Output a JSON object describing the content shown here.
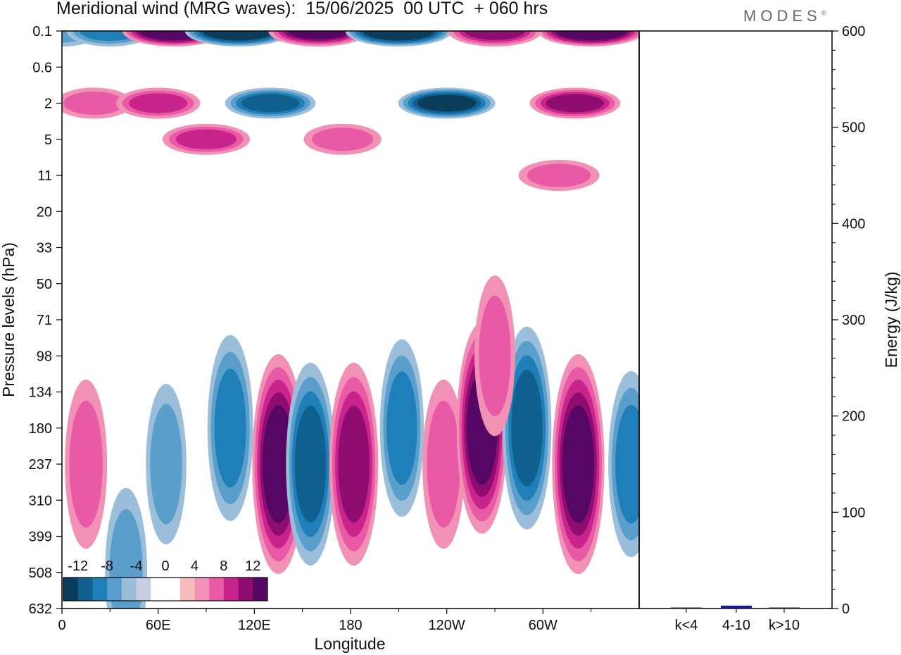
{
  "title": "Meridional wind (MRG waves):  15/06/2025  00 UTC  + 060 hrs",
  "logo": "MODES",
  "logo_mark": "®",
  "colors": {
    "neg": [
      "#0b3d5b",
      "#10608f",
      "#1f7fb8",
      "#5a9fcc",
      "#9bbedb",
      "#c9cce3"
    ],
    "pos": [
      "#f6bcbc",
      "#f291b6",
      "#e85aa5",
      "#c9238c",
      "#8f0d70",
      "#560764"
    ],
    "bar": "#1a1a8c"
  },
  "chart_data": [
    {
      "type": "heatmap",
      "title": "Meridional wind (MRG waves):  15/06/2025  00 UTC  + 060 hrs",
      "xlabel": "Longitude",
      "ylabel": "Pressure levels (hPa)",
      "x_ticks": [
        "0",
        "60E",
        "120E",
        "180",
        "120W",
        "60W"
      ],
      "y_ticks": [
        "0.1",
        "0.6",
        "2",
        "5",
        "11",
        "20",
        "33",
        "50",
        "71",
        "98",
        "134",
        "180",
        "237",
        "310",
        "399",
        "508",
        "632"
      ],
      "colorbar_labels": [
        "-12",
        "-8",
        "-4",
        "0",
        "4",
        "8",
        "12"
      ],
      "contour_levels": [
        -12,
        -10,
        -8,
        -6,
        -4,
        -2,
        2,
        4,
        6,
        8,
        10,
        12
      ],
      "features": [
        {
          "lon": 0,
          "level": 0.1,
          "value": -5
        },
        {
          "lon": 30,
          "level": 0.1,
          "value": -7
        },
        {
          "lon": 70,
          "level": 0.1,
          "value": 12
        },
        {
          "lon": 110,
          "level": 0.1,
          "value": -13
        },
        {
          "lon": 160,
          "level": 0.1,
          "value": 11
        },
        {
          "lon": 210,
          "level": 0.1,
          "value": -13
        },
        {
          "lon": 270,
          "level": 0.1,
          "value": 9
        },
        {
          "lon": 330,
          "level": 0.1,
          "value": 13
        },
        {
          "lon": 20,
          "level": 2,
          "value": 4
        },
        {
          "lon": 60,
          "level": 2,
          "value": 6
        },
        {
          "lon": 130,
          "level": 2,
          "value": -8
        },
        {
          "lon": 240,
          "level": 2,
          "value": -10
        },
        {
          "lon": 320,
          "level": 2,
          "value": 8
        },
        {
          "lon": 90,
          "level": 5,
          "value": 7
        },
        {
          "lon": 175,
          "level": 5,
          "value": 4
        },
        {
          "lon": 310,
          "level": 11,
          "value": 5
        },
        {
          "lon": 65,
          "level": 237,
          "value": -4
        },
        {
          "lon": 105,
          "level": 180,
          "value": -7
        },
        {
          "lon": 135,
          "level": 237,
          "value": 11
        },
        {
          "lon": 155,
          "level": 237,
          "value": -9
        },
        {
          "lon": 182,
          "level": 237,
          "value": 9
        },
        {
          "lon": 212,
          "level": 180,
          "value": -6
        },
        {
          "lon": 238,
          "level": 237,
          "value": 5
        },
        {
          "lon": 262,
          "level": 180,
          "value": 10
        },
        {
          "lon": 290,
          "level": 180,
          "value": -9
        },
        {
          "lon": 322,
          "level": 237,
          "value": 11
        },
        {
          "lon": 355,
          "level": 237,
          "value": -7
        },
        {
          "lon": 15,
          "level": 237,
          "value": 5
        },
        {
          "lon": 40,
          "level": 508,
          "value": -5
        },
        {
          "lon": 270,
          "level": 98,
          "value": 4
        }
      ]
    },
    {
      "type": "bar",
      "categories": [
        "k<4",
        "4-10",
        "k>10"
      ],
      "values": [
        0.4,
        3.0,
        0.4
      ],
      "ylabel": "Energy (J/kg)",
      "ylim": [
        0,
        600
      ],
      "y_ticks": [
        "0",
        "100",
        "200",
        "300",
        "400",
        "500",
        "600"
      ]
    }
  ]
}
